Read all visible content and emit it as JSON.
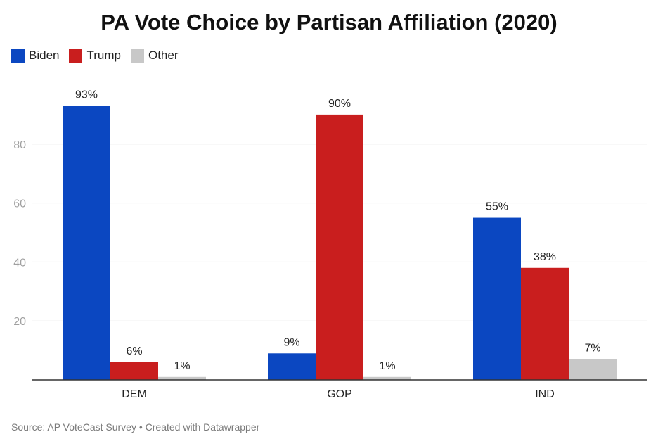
{
  "title": "PA Vote Choice by Partisan Affiliation (2020)",
  "footer": "Source: AP VoteCast Survey • Created with Datawrapper",
  "colors": {
    "Biden": "#0b47c1",
    "Trump": "#c91e1e",
    "Other": "#c8c8c8"
  },
  "chart_data": {
    "type": "bar",
    "title": "PA Vote Choice by Partisan Affiliation (2020)",
    "categories": [
      "DEM",
      "GOP",
      "IND"
    ],
    "series": [
      {
        "name": "Biden",
        "values": [
          93,
          9,
          55
        ],
        "labels": [
          "93%",
          "9%",
          "55%"
        ]
      },
      {
        "name": "Trump",
        "values": [
          6,
          90,
          38
        ],
        "labels": [
          "6%",
          "90%",
          "38%"
        ]
      },
      {
        "name": "Other",
        "values": [
          1,
          1,
          7
        ],
        "labels": [
          "1%",
          "1%",
          "7%"
        ]
      }
    ],
    "yticks": [
      20,
      40,
      60,
      80
    ],
    "ylim": [
      0,
      100
    ],
    "xlabel": "",
    "ylabel": "",
    "grid": true,
    "legend": "top-left"
  }
}
